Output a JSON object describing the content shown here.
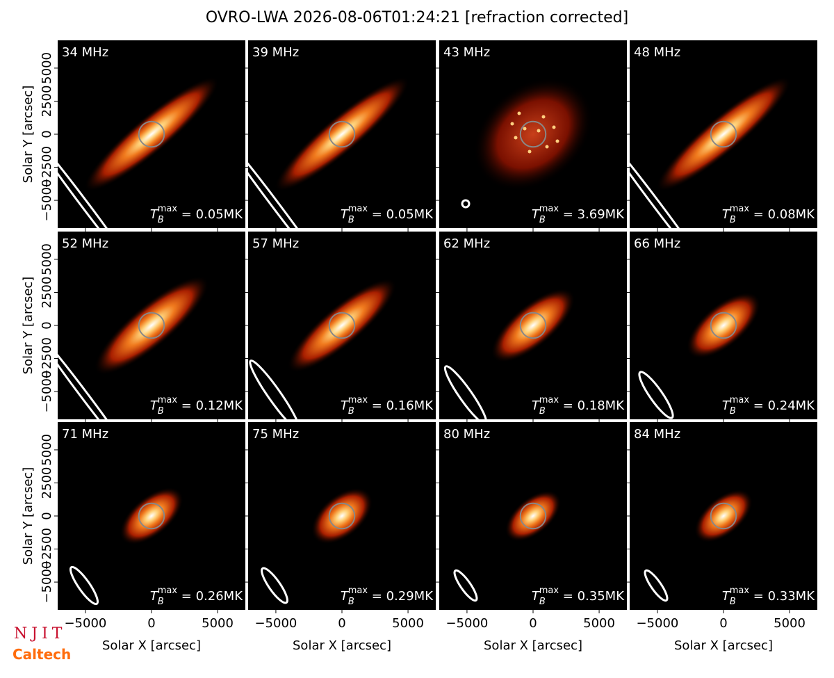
{
  "chart_data": {
    "type": "image-grid",
    "title": "OVRO-LWA 2026-08-06T01:24:21 [refraction corrected]",
    "xlabel": "Solar X [arcsec]",
    "ylabel": "Solar Y [arcsec]",
    "xlim": [
      -7100,
      7100
    ],
    "ylim": [
      -7100,
      7100
    ],
    "xticks": [
      {
        "value": -5000,
        "label": "−5000"
      },
      0,
      5000
    ],
    "yticks": [
      {
        "value": -5000,
        "label": "−5000"
      },
      {
        "value": -2500,
        "label": "−2500"
      },
      0,
      2500,
      5000
    ],
    "tb_symbol": "T",
    "tb_sub": "B",
    "tb_sup": "max",
    "panels": [
      {
        "label": "34 MHz",
        "tb_label": " = 0.05MK"
      },
      {
        "label": "39 MHz",
        "tb_label": " = 0.05MK"
      },
      {
        "label": "43 MHz",
        "tb_label": " = 3.69MK"
      },
      {
        "label": "48 MHz",
        "tb_label": " = 0.08MK"
      },
      {
        "label": "52 MHz",
        "tb_label": " = 0.12MK"
      },
      {
        "label": "57 MHz",
        "tb_label": " = 0.16MK"
      },
      {
        "label": "62 MHz",
        "tb_label": " = 0.18MK"
      },
      {
        "label": "66 MHz",
        "tb_label": " = 0.24MK"
      },
      {
        "label": "71 MHz",
        "tb_label": " = 0.26MK"
      },
      {
        "label": "75 MHz",
        "tb_label": " = 0.29MK"
      },
      {
        "label": "80 MHz",
        "tb_label": " = 0.35MK"
      },
      {
        "label": "84 MHz",
        "tb_label": " = 0.33MK"
      }
    ]
  },
  "logos": [
    "NJIT",
    "Caltech"
  ]
}
